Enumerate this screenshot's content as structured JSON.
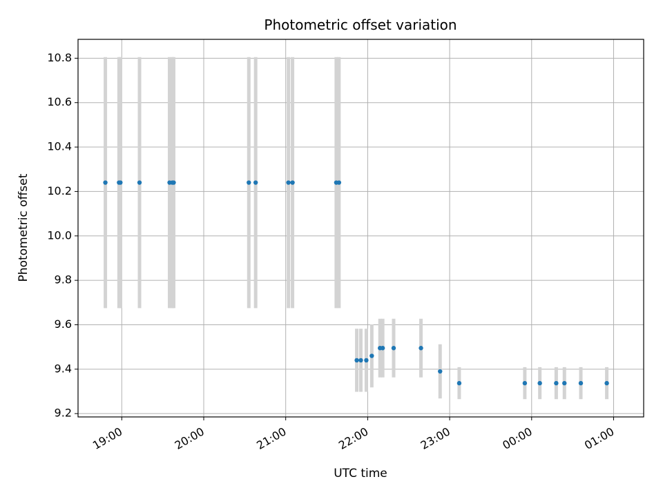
{
  "chart_data": {
    "type": "scatter",
    "title": "Photometric offset variation",
    "xlabel": "UTC time",
    "ylabel": "Photometric offset",
    "grid": true,
    "x_axis_type": "time",
    "xlim": [
      "18:28",
      "01:22"
    ],
    "ylim": [
      9.185,
      10.885
    ],
    "x_ticks": [
      {
        "value": "19:00",
        "label": "19:00"
      },
      {
        "value": "20:00",
        "label": "20:00"
      },
      {
        "value": "21:00",
        "label": "21:00"
      },
      {
        "value": "22:00",
        "label": "22:00"
      },
      {
        "value": "23:00",
        "label": "23:00"
      },
      {
        "value": "00:00",
        "label": "00:00"
      },
      {
        "value": "01:00",
        "label": "01:00"
      }
    ],
    "y_ticks": [
      {
        "value": 9.2,
        "label": "9.2"
      },
      {
        "value": 9.4,
        "label": "9.4"
      },
      {
        "value": 9.6,
        "label": "9.6"
      },
      {
        "value": 9.8,
        "label": "9.8"
      },
      {
        "value": 10.0,
        "label": "10.0"
      },
      {
        "value": 10.2,
        "label": "10.2"
      },
      {
        "value": 10.4,
        "label": "10.4"
      },
      {
        "value": 10.6,
        "label": "10.6"
      },
      {
        "value": 10.8,
        "label": "10.8"
      }
    ],
    "marker_color": "#1f77b4",
    "errorbar_color": "#d3d3d3",
    "points": [
      {
        "x": "18:48",
        "y": 10.24,
        "err": 0.565
      },
      {
        "x": "18:58",
        "y": 10.24,
        "err": 0.565
      },
      {
        "x": "18:59",
        "y": 10.24,
        "err": 0.565
      },
      {
        "x": "19:13",
        "y": 10.24,
        "err": 0.565
      },
      {
        "x": "19:35",
        "y": 10.24,
        "err": 0.565
      },
      {
        "x": "19:37",
        "y": 10.24,
        "err": 0.565
      },
      {
        "x": "19:38",
        "y": 10.24,
        "err": 0.565
      },
      {
        "x": "20:33",
        "y": 10.24,
        "err": 0.565
      },
      {
        "x": "20:38",
        "y": 10.24,
        "err": 0.565
      },
      {
        "x": "21:02",
        "y": 10.24,
        "err": 0.565
      },
      {
        "x": "21:05",
        "y": 10.24,
        "err": 0.565
      },
      {
        "x": "21:37",
        "y": 10.24,
        "err": 0.565
      },
      {
        "x": "21:39",
        "y": 10.24,
        "err": 0.565
      },
      {
        "x": "21:52",
        "y": 9.44,
        "err": 0.142
      },
      {
        "x": "21:55",
        "y": 9.44,
        "err": 0.142
      },
      {
        "x": "21:59",
        "y": 9.44,
        "err": 0.142
      },
      {
        "x": "22:03",
        "y": 9.46,
        "err": 0.142
      },
      {
        "x": "22:09",
        "y": 9.495,
        "err": 0.132
      },
      {
        "x": "22:11",
        "y": 9.495,
        "err": 0.132
      },
      {
        "x": "22:19",
        "y": 9.495,
        "err": 0.132
      },
      {
        "x": "22:39",
        "y": 9.495,
        "err": 0.132
      },
      {
        "x": "22:53",
        "y": 9.39,
        "err": 0.122
      },
      {
        "x": "23:07",
        "y": 9.337,
        "err": 0.072
      },
      {
        "x": "23:55",
        "y": 9.337,
        "err": 0.072
      },
      {
        "x": "00:06",
        "y": 9.337,
        "err": 0.072
      },
      {
        "x": "00:18",
        "y": 9.337,
        "err": 0.072
      },
      {
        "x": "00:24",
        "y": 9.337,
        "err": 0.072
      },
      {
        "x": "00:36",
        "y": 9.337,
        "err": 0.072
      },
      {
        "x": "00:55",
        "y": 9.337,
        "err": 0.072
      }
    ]
  }
}
